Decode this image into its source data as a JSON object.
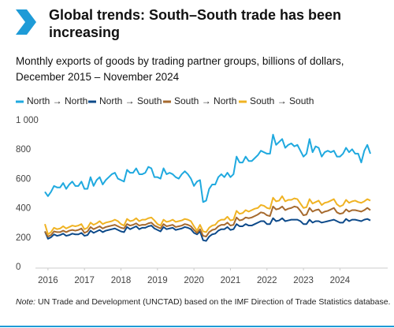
{
  "chart_data": {
    "type": "line",
    "title": "Global trends: South–South trade has been increasing",
    "subtitle": "Monthly exports of goods by trading partner groups, billions of dollars, December 2015 – November 2024",
    "x": [
      "2015-12",
      "2016-01",
      "2016-02",
      "2016-03",
      "2016-04",
      "2016-05",
      "2016-06",
      "2016-07",
      "2016-08",
      "2016-09",
      "2016-10",
      "2016-11",
      "2016-12",
      "2017-01",
      "2017-02",
      "2017-03",
      "2017-04",
      "2017-05",
      "2017-06",
      "2017-07",
      "2017-08",
      "2017-09",
      "2017-10",
      "2017-11",
      "2017-12",
      "2018-01",
      "2018-02",
      "2018-03",
      "2018-04",
      "2018-05",
      "2018-06",
      "2018-07",
      "2018-08",
      "2018-09",
      "2018-10",
      "2018-11",
      "2018-12",
      "2019-01",
      "2019-02",
      "2019-03",
      "2019-04",
      "2019-05",
      "2019-06",
      "2019-07",
      "2019-08",
      "2019-09",
      "2019-10",
      "2019-11",
      "2019-12",
      "2020-01",
      "2020-02",
      "2020-03",
      "2020-04",
      "2020-05",
      "2020-06",
      "2020-07",
      "2020-08",
      "2020-09",
      "2020-10",
      "2020-11",
      "2020-12",
      "2021-01",
      "2021-02",
      "2021-03",
      "2021-04",
      "2021-05",
      "2021-06",
      "2021-07",
      "2021-08",
      "2021-09",
      "2021-10",
      "2021-11",
      "2021-12",
      "2022-01",
      "2022-02",
      "2022-03",
      "2022-04",
      "2022-05",
      "2022-06",
      "2022-07",
      "2022-08",
      "2022-09",
      "2022-10",
      "2022-11",
      "2022-12",
      "2023-01",
      "2023-02",
      "2023-03",
      "2023-04",
      "2023-05",
      "2023-06",
      "2023-07",
      "2023-08",
      "2023-09",
      "2023-10",
      "2023-11",
      "2023-12",
      "2024-01",
      "2024-02",
      "2024-03",
      "2024-04",
      "2024-05",
      "2024-06",
      "2024-07",
      "2024-08",
      "2024-09",
      "2024-10",
      "2024-11"
    ],
    "series": [
      {
        "name": "North → North",
        "color": "#1fa9df",
        "values": [
          520,
          490,
          520,
          560,
          550,
          550,
          580,
          540,
          570,
          590,
          560,
          560,
          590,
          540,
          540,
          620,
          560,
          600,
          620,
          570,
          600,
          620,
          640,
          650,
          610,
          600,
          590,
          670,
          650,
          650,
          680,
          640,
          640,
          650,
          690,
          680,
          620,
          620,
          610,
          680,
          640,
          650,
          640,
          620,
          610,
          640,
          660,
          640,
          610,
          560,
          590,
          600,
          450,
          460,
          540,
          570,
          570,
          620,
          640,
          620,
          650,
          620,
          640,
          760,
          720,
          720,
          760,
          730,
          730,
          750,
          770,
          800,
          790,
          780,
          780,
          910,
          840,
          860,
          880,
          820,
          840,
          850,
          830,
          840,
          800,
          760,
          780,
          880,
          790,
          830,
          820,
          760,
          790,
          800,
          790,
          800,
          760,
          760,
          780,
          820,
          790,
          810,
          780,
          780,
          720,
          800,
          840,
          780
        ]
      },
      {
        "name": "North → South",
        "color": "#0d4a8a",
        "values": [
          250,
          200,
          210,
          230,
          220,
          225,
          235,
          220,
          225,
          235,
          230,
          230,
          240,
          220,
          225,
          255,
          240,
          250,
          260,
          245,
          255,
          260,
          265,
          270,
          260,
          250,
          245,
          280,
          265,
          275,
          285,
          265,
          275,
          275,
          285,
          290,
          270,
          260,
          250,
          280,
          265,
          270,
          275,
          260,
          265,
          270,
          280,
          275,
          265,
          240,
          230,
          250,
          190,
          185,
          215,
          230,
          235,
          255,
          265,
          265,
          280,
          260,
          265,
          300,
          285,
          285,
          300,
          290,
          290,
          300,
          310,
          320,
          320,
          300,
          300,
          340,
          320,
          325,
          340,
          320,
          325,
          330,
          330,
          330,
          320,
          300,
          300,
          330,
          310,
          320,
          320,
          310,
          315,
          320,
          325,
          330,
          320,
          310,
          310,
          335,
          320,
          330,
          330,
          325,
          320,
          330,
          335,
          325
        ]
      },
      {
        "name": "South → North",
        "color": "#a66a2e",
        "values": [
          250,
          215,
          225,
          250,
          245,
          245,
          255,
          245,
          255,
          260,
          255,
          260,
          270,
          240,
          250,
          280,
          265,
          275,
          285,
          270,
          280,
          285,
          290,
          295,
          285,
          275,
          270,
          300,
          290,
          295,
          305,
          290,
          295,
          295,
          305,
          310,
          290,
          280,
          270,
          300,
          285,
          290,
          295,
          280,
          285,
          290,
          300,
          295,
          285,
          260,
          240,
          265,
          220,
          215,
          245,
          260,
          265,
          285,
          295,
          295,
          310,
          290,
          295,
          345,
          325,
          330,
          345,
          340,
          345,
          355,
          365,
          380,
          375,
          360,
          355,
          420,
          400,
          405,
          420,
          395,
          405,
          410,
          420,
          415,
          390,
          360,
          365,
          410,
          385,
          395,
          400,
          375,
          385,
          390,
          400,
          410,
          380,
          370,
          375,
          400,
          385,
          395,
          395,
          390,
          385,
          395,
          410,
          395
        ]
      },
      {
        "name": "South → South",
        "color": "#f0b323",
        "values": [
          300,
          230,
          245,
          275,
          265,
          270,
          285,
          270,
          280,
          290,
          285,
          290,
          300,
          265,
          275,
          310,
          295,
          305,
          320,
          300,
          310,
          315,
          320,
          330,
          320,
          300,
          290,
          335,
          320,
          325,
          340,
          320,
          330,
          330,
          340,
          345,
          325,
          300,
          290,
          330,
          315,
          320,
          330,
          315,
          320,
          325,
          335,
          330,
          320,
          285,
          255,
          295,
          250,
          245,
          275,
          290,
          295,
          320,
          330,
          330,
          350,
          325,
          330,
          390,
          370,
          375,
          395,
          385,
          395,
          405,
          410,
          430,
          425,
          410,
          405,
          480,
          455,
          460,
          490,
          455,
          465,
          465,
          475,
          470,
          440,
          410,
          415,
          470,
          440,
          450,
          460,
          430,
          445,
          450,
          460,
          470,
          435,
          420,
          430,
          465,
          445,
          455,
          460,
          450,
          445,
          455,
          470,
          460
        ]
      }
    ],
    "ylim": [
      0,
      1000
    ],
    "yticks": [
      0,
      200,
      400,
      600,
      800,
      {
        "value": 1000,
        "label": "1 000"
      }
    ],
    "xticks": [
      {
        "value": "2016-01",
        "label": "2016"
      },
      {
        "value": "2017-01",
        "label": "2017"
      },
      {
        "value": "2018-01",
        "label": "2018"
      },
      {
        "value": "2019-01",
        "label": "2019"
      },
      {
        "value": "2020-01",
        "label": "2020"
      },
      {
        "value": "2021-01",
        "label": "2021"
      },
      {
        "value": "2022-01",
        "label": "2022"
      },
      {
        "value": "2023-01",
        "label": "2023"
      },
      {
        "value": "2024-01",
        "label": "2024"
      }
    ],
    "grid": false,
    "note_label": "Note:",
    "note": "UN Trade and Development (UNCTAD) based on the IMF Direction of Trade Statistics database."
  }
}
